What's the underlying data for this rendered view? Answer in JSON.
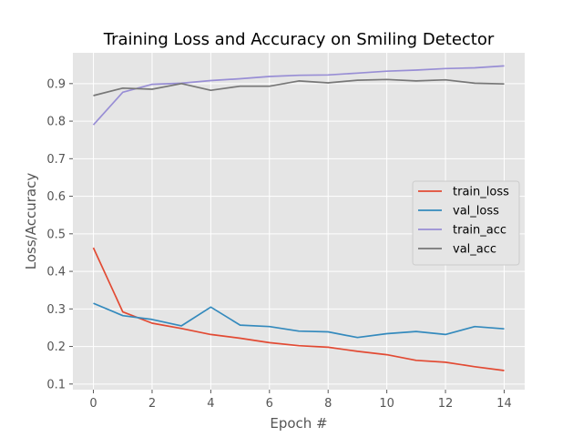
{
  "chart_data": {
    "type": "line",
    "title": "Training Loss and Accuracy on Smiling Detector",
    "xlabel": "Epoch #",
    "ylabel": "Loss/Accuracy",
    "xlim": [
      -0.7,
      14.7
    ],
    "ylim": [
      0.085,
      0.982
    ],
    "xticks": [
      0,
      2,
      4,
      6,
      8,
      10,
      12,
      14
    ],
    "yticks": [
      0.1,
      0.2,
      0.3,
      0.4,
      0.5,
      0.6,
      0.7,
      0.8,
      0.9
    ],
    "grid": true,
    "legend_position": "center-right",
    "x": [
      0,
      1,
      2,
      3,
      4,
      5,
      6,
      7,
      8,
      9,
      10,
      11,
      12,
      13,
      14
    ],
    "series": [
      {
        "name": "train_loss",
        "color": "#E24A33",
        "values": [
          0.463,
          0.292,
          0.262,
          0.248,
          0.232,
          0.222,
          0.21,
          0.202,
          0.198,
          0.187,
          0.178,
          0.163,
          0.158,
          0.146,
          0.136
        ]
      },
      {
        "name": "val_loss",
        "color": "#348ABD",
        "values": [
          0.315,
          0.282,
          0.272,
          0.255,
          0.305,
          0.257,
          0.253,
          0.241,
          0.239,
          0.224,
          0.234,
          0.24,
          0.232,
          0.253,
          0.247
        ]
      },
      {
        "name": "train_acc",
        "color": "#988ED5",
        "values": [
          0.79,
          0.877,
          0.898,
          0.901,
          0.908,
          0.913,
          0.919,
          0.922,
          0.923,
          0.928,
          0.933,
          0.936,
          0.94,
          0.942,
          0.947
        ]
      },
      {
        "name": "val_acc",
        "color": "#777777",
        "values": [
          0.868,
          0.888,
          0.885,
          0.9,
          0.882,
          0.893,
          0.893,
          0.907,
          0.902,
          0.909,
          0.911,
          0.907,
          0.91,
          0.901,
          0.899
        ]
      }
    ]
  },
  "colors": {
    "plot_background": "#E5E5E5",
    "grid": "#FFFFFF",
    "text": "#555555"
  }
}
